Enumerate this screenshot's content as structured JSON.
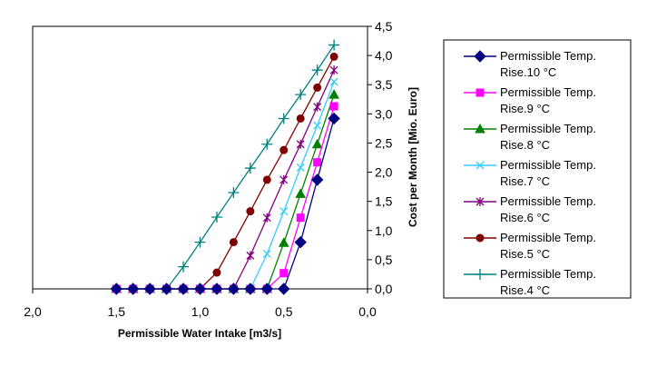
{
  "chart_data": {
    "type": "line",
    "title": "",
    "xlabel": "Permissible Water Intake [m3/s]",
    "ylabel": "Cost per Month [Mio. Euro]",
    "xlim": [
      2.0,
      0.0
    ],
    "ylim": [
      0.0,
      4.5
    ],
    "x_ticks": [
      "2,0",
      "1,5",
      "1,0",
      "0,5",
      "0,0"
    ],
    "y_ticks": [
      "0,0",
      "0,5",
      "1,0",
      "1,5",
      "2,0",
      "2,5",
      "3,0",
      "3,5",
      "4,0",
      "4,5"
    ],
    "y_axis_position": "right",
    "x_reversed": true,
    "grid": false,
    "legend_position": "right",
    "x": [
      1.5,
      1.4,
      1.3,
      1.2,
      1.1,
      1.0,
      0.9,
      0.8,
      0.7,
      0.6,
      0.5,
      0.4,
      0.3,
      0.2
    ],
    "series": [
      {
        "name": "Permissible Temp. Rise.10 °C",
        "legend_line1": "Permissible Temp.",
        "legend_line2": "Rise.10 °C",
        "color": "#000080",
        "marker": "diamond",
        "values": [
          0,
          0,
          0,
          0,
          0,
          0,
          0,
          0,
          0,
          0,
          0,
          0.8,
          1.87,
          2.92
        ]
      },
      {
        "name": "Permissible Temp. Rise.9 °C",
        "legend_line1": "Permissible Temp.",
        "legend_line2": "Rise.9 °C",
        "color": "#FF00FF",
        "marker": "square",
        "values": [
          0,
          0,
          0,
          0,
          0,
          0,
          0,
          0,
          0,
          0,
          0.27,
          1.22,
          2.17,
          3.13
        ]
      },
      {
        "name": "Permissible Temp. Rise.8 °C",
        "legend_line1": "Permissible Temp.",
        "legend_line2": "Rise.8 °C",
        "color": "#008000",
        "marker": "triangle",
        "values": [
          0,
          0,
          0,
          0,
          0,
          0,
          0,
          0,
          0,
          0,
          0.79,
          1.63,
          2.48,
          3.33
        ]
      },
      {
        "name": "Permissible Temp. Rise.7 °C",
        "legend_line1": "Permissible Temp.",
        "legend_line2": "Rise.7 °C",
        "color": "#33CCFF",
        "marker": "x",
        "values": [
          0,
          0,
          0,
          0,
          0,
          0,
          0,
          0,
          0,
          0.6,
          1.33,
          2.08,
          2.8,
          3.55
        ]
      },
      {
        "name": "Permissible Temp. Rise.6 °C",
        "legend_line1": "Permissible Temp.",
        "legend_line2": "Rise.6 °C",
        "color": "#800080",
        "marker": "star",
        "values": [
          0,
          0,
          0,
          0,
          0,
          0,
          0,
          0,
          0.57,
          1.22,
          1.87,
          2.48,
          3.12,
          3.75
        ]
      },
      {
        "name": "Permissible Temp. Rise.5 °C",
        "legend_line1": "Permissible Temp.",
        "legend_line2": "Rise.5 °C",
        "color": "#800000",
        "marker": "circle",
        "values": [
          0,
          0,
          0,
          0,
          0,
          0,
          0.28,
          0.8,
          1.33,
          1.87,
          2.38,
          2.92,
          3.45,
          3.98
        ]
      },
      {
        "name": "Permissible Temp. Rise.4 °C",
        "legend_line1": "Permissible Temp.",
        "legend_line2": "Rise.4 °C",
        "color": "#008080",
        "marker": "plus",
        "values": [
          0,
          0,
          0,
          0,
          0.38,
          0.8,
          1.23,
          1.65,
          2.07,
          2.48,
          2.92,
          3.33,
          3.75,
          4.18
        ]
      }
    ]
  }
}
